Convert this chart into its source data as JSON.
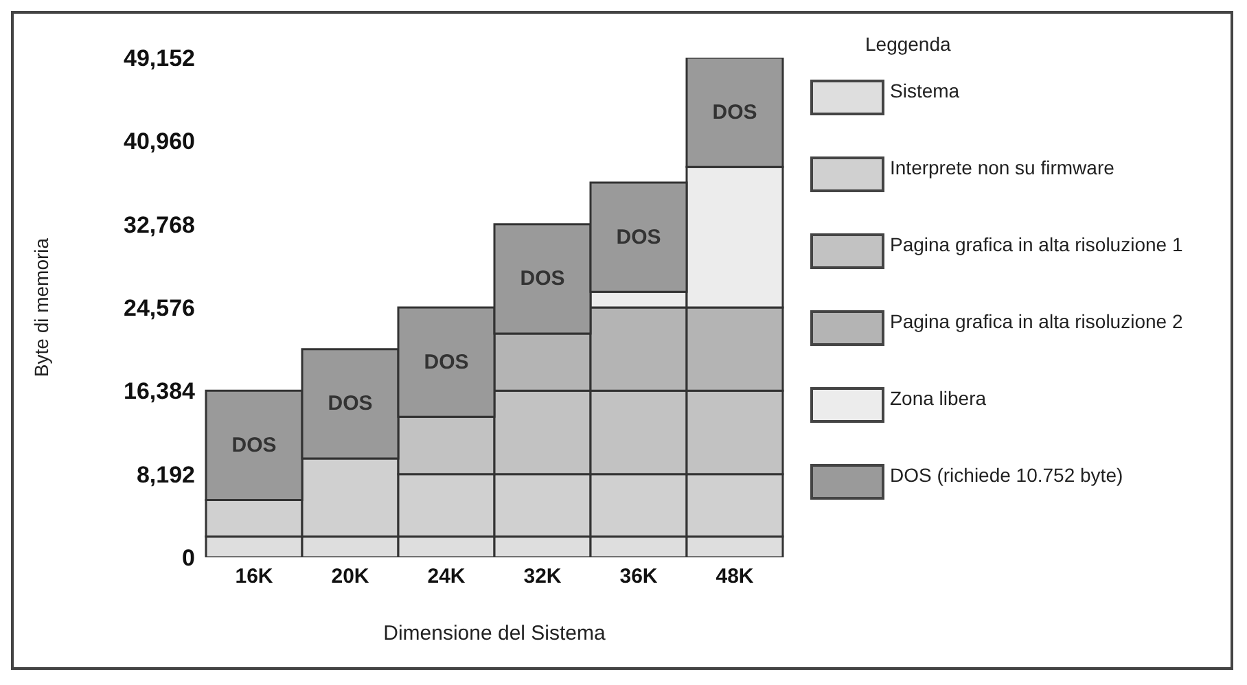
{
  "chart_data": {
    "type": "bar",
    "stacked": true,
    "xlabel": "Dimensione del Sistema",
    "ylabel": "Byte di memoria",
    "legend_title": "Leggenda",
    "legend": "right",
    "grid": false,
    "categories": [
      "16K",
      "20K",
      "24K",
      "32K",
      "36K",
      "48K"
    ],
    "ylim": [
      0,
      49152
    ],
    "yticks": [
      0,
      {
        "value": 8192,
        "label": "8,192"
      },
      {
        "value": 16384,
        "label": "16,384"
      },
      {
        "value": 24576,
        "label": "24,576"
      },
      {
        "value": 32768,
        "label": "32,768"
      },
      {
        "value": 40960,
        "label": "40,960"
      },
      {
        "value": 49152,
        "label": "49,152"
      }
    ],
    "series": [
      {
        "name": "Sistema",
        "color": "#dedede",
        "values": [
          2048,
          2048,
          2048,
          2048,
          2048,
          2048
        ]
      },
      {
        "name": "Interprete non su firmware",
        "color": "#d0d0d0",
        "values": [
          3584,
          7680,
          6144,
          6144,
          6144,
          6144
        ]
      },
      {
        "name": "Pagina grafica in alta risoluzione 1",
        "color": "#c2c2c2",
        "values": [
          null,
          null,
          5632,
          8192,
          8192,
          8192
        ]
      },
      {
        "name": "Pagina grafica in alta risoluzione 2",
        "color": "#b4b4b4",
        "values": [
          null,
          null,
          null,
          5632,
          8192,
          8192
        ]
      },
      {
        "name": "Zona libera",
        "color": "#ececec",
        "values": [
          null,
          null,
          null,
          null,
          1536,
          13824
        ]
      },
      {
        "name": "DOS (richiede 10.752 byte)",
        "color": "#9a9a9a",
        "values": [
          10752,
          10752,
          10752,
          10752,
          10752,
          10752
        ],
        "value_labels": [
          "DOS",
          "DOS",
          "DOS",
          "DOS",
          "DOS",
          "DOS"
        ]
      }
    ]
  }
}
